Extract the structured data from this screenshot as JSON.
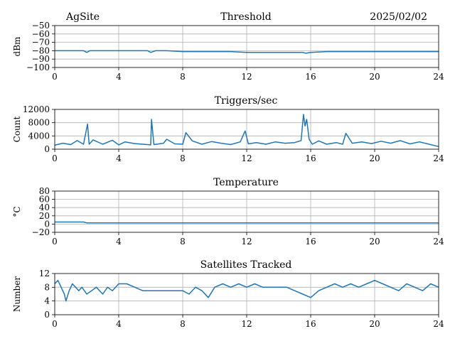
{
  "header": {
    "site": "AgSite",
    "date": "2025/02/02"
  },
  "style": {
    "series_color": "#1f77b4",
    "grid_color": "#b0b0b0"
  },
  "chart_data": [
    {
      "type": "line",
      "title": "Threshold",
      "ylabel": "dBm",
      "xlim": [
        0,
        24
      ],
      "ylim": [
        -100,
        -50
      ],
      "xticks": [
        0,
        4,
        8,
        12,
        16,
        20,
        24
      ],
      "yticks": [
        -100,
        -90,
        -80,
        -70,
        -60,
        -50
      ],
      "ytick_labels": [
        "−100",
        "−90",
        "−80",
        "−70",
        "−60",
        "−50"
      ],
      "grid": true,
      "series": [
        {
          "x": [
            0,
            1,
            1.8,
            2.0,
            2.2,
            3,
            4,
            5,
            5.8,
            6.0,
            6.3,
            7,
            8,
            9,
            10,
            11,
            12,
            13,
            14,
            15,
            15.5,
            15.7,
            16,
            17,
            18,
            19,
            20,
            21,
            22,
            23,
            24
          ],
          "values": [
            -80,
            -80,
            -80,
            -82,
            -80,
            -80,
            -80,
            -80,
            -80,
            -82,
            -80,
            -80,
            -81,
            -81,
            -81,
            -81,
            -82,
            -82,
            -82,
            -82,
            -82,
            -83,
            -82,
            -81,
            -81,
            -81,
            -81,
            -81,
            -81,
            -81,
            -81
          ]
        }
      ]
    },
    {
      "type": "line",
      "title": "Triggers/sec",
      "ylabel": "Count",
      "xlim": [
        0,
        24
      ],
      "ylim": [
        0,
        12000
      ],
      "xticks": [
        0,
        4,
        8,
        12,
        16,
        20,
        24
      ],
      "yticks": [
        0,
        4000,
        8000,
        12000
      ],
      "grid": true,
      "series": [
        {
          "x": [
            0,
            0.5,
            1.0,
            1.4,
            1.8,
            2.05,
            2.15,
            2.4,
            3.0,
            3.6,
            4.0,
            4.4,
            5.0,
            5.5,
            6.0,
            6.05,
            6.2,
            6.8,
            7.0,
            7.5,
            8.0,
            8.2,
            8.6,
            9.2,
            9.8,
            10.4,
            11.0,
            11.6,
            11.9,
            12.1,
            12.6,
            13.2,
            13.8,
            14.4,
            15.0,
            15.4,
            15.55,
            15.65,
            15.75,
            15.9,
            16.1,
            16.5,
            17.0,
            17.6,
            18.0,
            18.2,
            18.6,
            19.2,
            19.8,
            20.4,
            21.0,
            21.6,
            22.2,
            22.8,
            23.4,
            24.0
          ],
          "values": [
            1200,
            1800,
            1400,
            2600,
            1500,
            7600,
            1500,
            2800,
            1500,
            2700,
            1300,
            2200,
            1700,
            1500,
            1300,
            9000,
            1400,
            1800,
            3000,
            1600,
            1500,
            5000,
            2500,
            1500,
            2300,
            1800,
            1400,
            2200,
            5500,
            1600,
            2000,
            1500,
            2200,
            1800,
            2000,
            2600,
            10500,
            7000,
            9000,
            3000,
            1500,
            2500,
            1500,
            2000,
            1500,
            4800,
            1800,
            2200,
            1700,
            2400,
            1800,
            2600,
            1600,
            2200,
            1500,
            800
          ]
        }
      ]
    },
    {
      "type": "line",
      "title": "Temperature",
      "ylabel": "°C",
      "xlim": [
        0,
        24
      ],
      "ylim": [
        -20,
        80
      ],
      "xticks": [
        0,
        4,
        8,
        12,
        16,
        20,
        24
      ],
      "yticks": [
        -20,
        0,
        20,
        40,
        60,
        80
      ],
      "ytick_labels": [
        "−20",
        "0",
        "20",
        "40",
        "60",
        "80"
      ],
      "grid": true,
      "series": [
        {
          "x": [
            0,
            1.8,
            2.0,
            24
          ],
          "values": [
            5,
            5,
            3,
            3
          ]
        }
      ]
    },
    {
      "type": "line",
      "title": "Satellites Tracked",
      "ylabel": "Number",
      "xlim": [
        0,
        24
      ],
      "ylim": [
        0,
        12
      ],
      "xticks": [
        0,
        4,
        8,
        12,
        16,
        20,
        24
      ],
      "yticks": [
        0,
        4,
        8,
        12
      ],
      "grid": true,
      "series": [
        {
          "x": [
            0,
            0.2,
            0.4,
            0.6,
            0.7,
            0.9,
            1.1,
            1.3,
            1.5,
            1.7,
            2.0,
            2.3,
            2.6,
            3.0,
            3.3,
            3.6,
            4.0,
            4.5,
            5.0,
            5.5,
            6.0,
            6.5,
            7.0,
            7.5,
            8.0,
            8.4,
            8.8,
            9.2,
            9.6,
            10.0,
            10.5,
            11.0,
            11.5,
            12.0,
            12.5,
            13.0,
            13.5,
            14.0,
            14.5,
            15.0,
            15.5,
            16.0,
            16.5,
            17.0,
            17.5,
            18.0,
            18.5,
            19.0,
            19.5,
            20.0,
            20.5,
            21.0,
            21.5,
            22.0,
            22.5,
            23.0,
            23.5,
            24.0
          ],
          "values": [
            9,
            10,
            8,
            6,
            4,
            7,
            9,
            8,
            7,
            8,
            6,
            7,
            8,
            6,
            8,
            7,
            9,
            9,
            8,
            7,
            7,
            7,
            7,
            7,
            7,
            6,
            8,
            7,
            5,
            8,
            9,
            8,
            9,
            8,
            9,
            8,
            8,
            8,
            8,
            7,
            6,
            5,
            7,
            8,
            9,
            8,
            9,
            8,
            9,
            10,
            9,
            8,
            7,
            9,
            8,
            7,
            9,
            8
          ]
        }
      ]
    }
  ]
}
